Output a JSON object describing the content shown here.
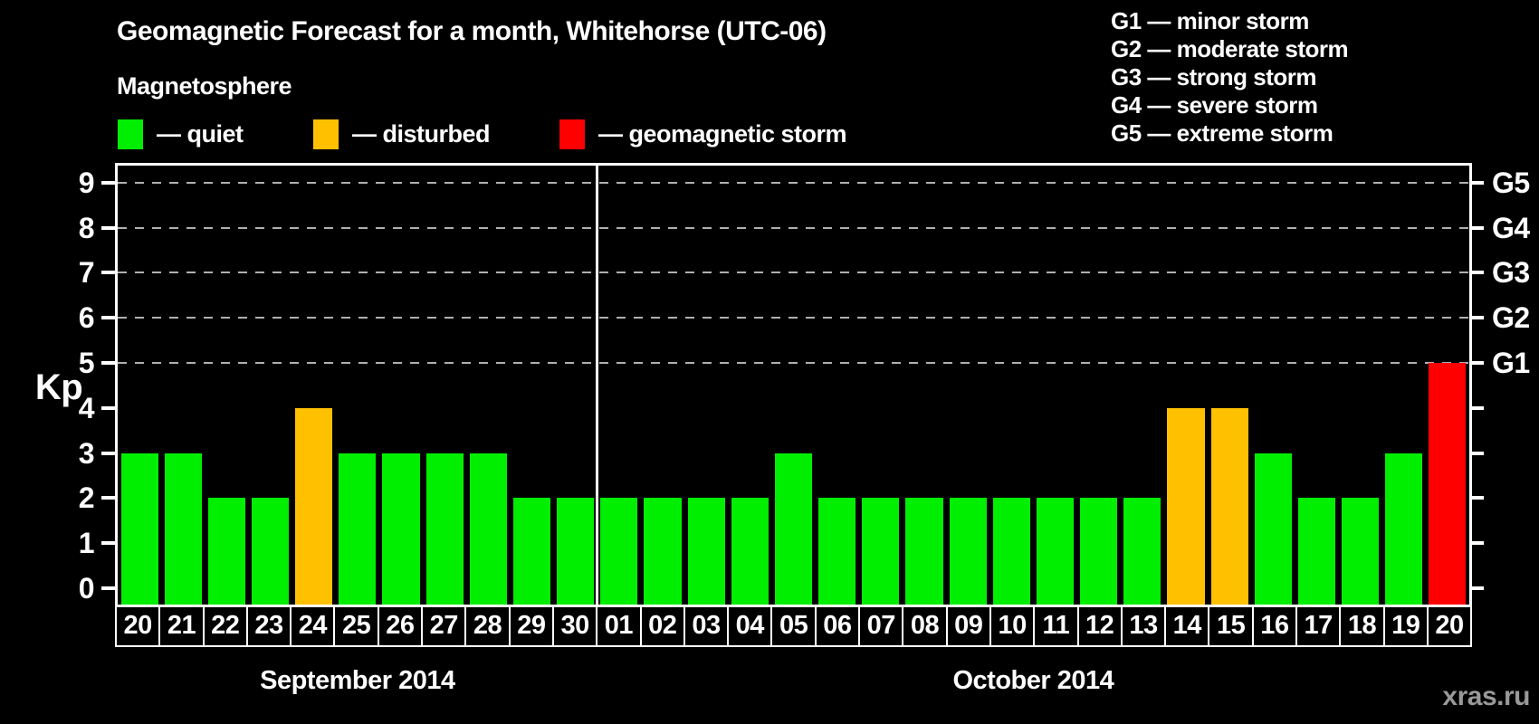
{
  "header": {
    "title": "Geomagnetic Forecast for a month, Whitehorse (UTC-06)"
  },
  "legend": {
    "title": "Magnetosphere",
    "separator": "—",
    "items": [
      {
        "label": "quiet",
        "status": "quiet",
        "color": "#00ee00"
      },
      {
        "label": "disturbed",
        "status": "disturbed",
        "color": "#ffc000"
      },
      {
        "label": "geomagnetic storm",
        "status": "storm",
        "color": "#ff0000"
      }
    ]
  },
  "storm_scale_legend": [
    "G1 — minor storm",
    "G2 — moderate storm",
    "G3 — strong storm",
    "G4 — severe storm",
    "G5 — extreme storm"
  ],
  "watermark": "xras.ru",
  "chart_data": {
    "type": "bar",
    "title": "Geomagnetic Forecast for a month, Whitehorse (UTC-06)",
    "xlabel": "",
    "ylabel": "Kp",
    "ylim": [
      0,
      9
    ],
    "y_ticks": [
      0,
      1,
      2,
      3,
      4,
      5,
      6,
      7,
      8,
      9
    ],
    "gridlines_at_kp": [
      5,
      6,
      7,
      8,
      9
    ],
    "grid": "horizontal dashed lines at Kp 5-9 only",
    "legend_position": "top-left and top-right",
    "right_axis_labels": [
      {
        "kp": 5,
        "label": "G1"
      },
      {
        "kp": 6,
        "label": "G2"
      },
      {
        "kp": 7,
        "label": "G3"
      },
      {
        "kp": 8,
        "label": "G4"
      },
      {
        "kp": 9,
        "label": "G5"
      }
    ],
    "colors": {
      "quiet": "#00ee00",
      "disturbed": "#ffc000",
      "storm": "#ff0000"
    },
    "months": [
      {
        "label": "September 2014",
        "days": [
          "20",
          "21",
          "22",
          "23",
          "24",
          "25",
          "26",
          "27",
          "28",
          "29",
          "30"
        ],
        "values": [
          3,
          3,
          2,
          2,
          4,
          3,
          3,
          3,
          3,
          2,
          2
        ],
        "status": [
          "quiet",
          "quiet",
          "quiet",
          "quiet",
          "disturbed",
          "quiet",
          "quiet",
          "quiet",
          "quiet",
          "quiet",
          "quiet"
        ]
      },
      {
        "label": "October 2014",
        "days": [
          "01",
          "02",
          "03",
          "04",
          "05",
          "06",
          "07",
          "08",
          "09",
          "10",
          "11",
          "12",
          "13",
          "14",
          "15",
          "16",
          "17",
          "18",
          "19",
          "20"
        ],
        "values": [
          2,
          2,
          2,
          2,
          3,
          2,
          2,
          2,
          2,
          2,
          2,
          2,
          2,
          4,
          4,
          3,
          2,
          2,
          3,
          5
        ],
        "status": [
          "quiet",
          "quiet",
          "quiet",
          "quiet",
          "quiet",
          "quiet",
          "quiet",
          "quiet",
          "quiet",
          "quiet",
          "quiet",
          "quiet",
          "quiet",
          "disturbed",
          "disturbed",
          "quiet",
          "quiet",
          "quiet",
          "quiet",
          "storm"
        ]
      }
    ]
  }
}
